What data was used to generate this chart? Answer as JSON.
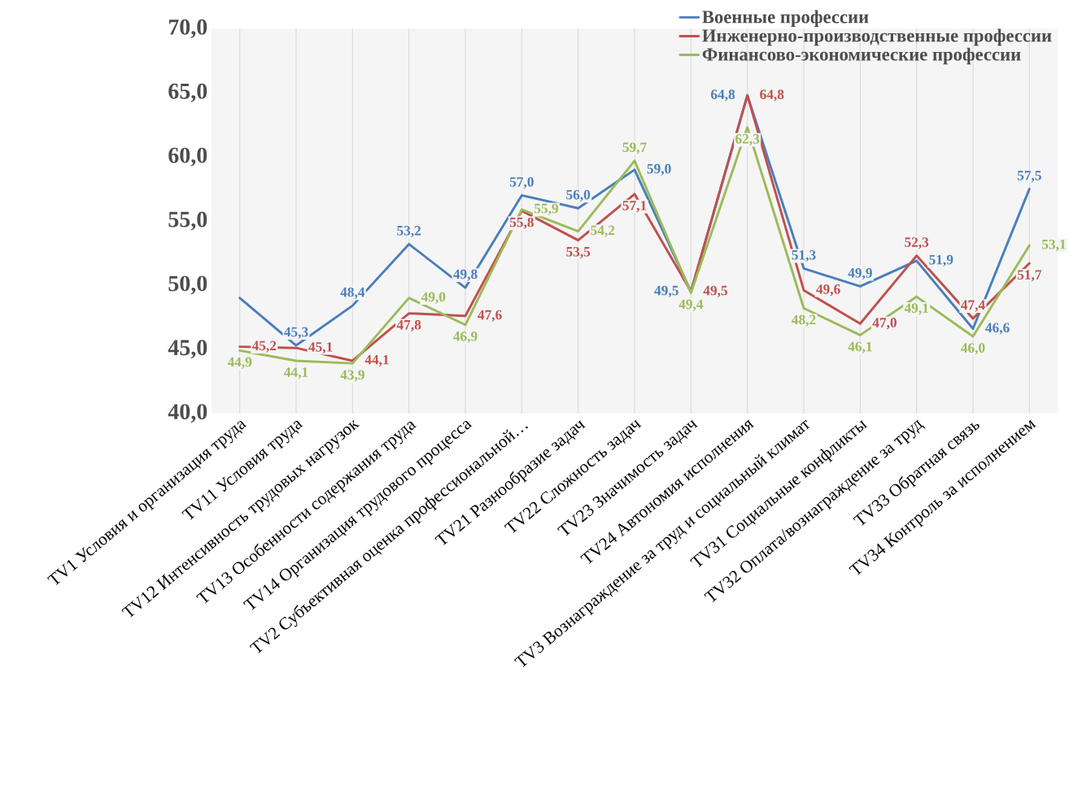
{
  "chart_data": {
    "type": "line",
    "categories": [
      "TV1 Условия и организация труда",
      "TV11 Условия труда",
      "TV12 Интенсивность трудовых нагрузок",
      "TV13 Особенности содержания труда",
      "TV14 Организация трудового процесса",
      "TV2 Субъективная оценка профессиональной…",
      "TV21 Разнообразие задач",
      "TV22 Сложность задач",
      "TV23 Значимость задач",
      "TV24 Автономия исполнения",
      "TV3 Вознаграждение за труд и социальный климат",
      "TV31 Социальные конфликты",
      "TV32 Оплата/вознаграждение за труд",
      "TV33 Обратная связь",
      "TV34 Контроль за исполнением"
    ],
    "series": [
      {
        "name": "Военные профессии",
        "color": "#4a7ebb",
        "values": [
          49.0,
          45.3,
          48.4,
          53.2,
          49.8,
          57.0,
          56.0,
          59.0,
          49.5,
          64.8,
          51.3,
          49.9,
          51.9,
          46.6,
          57.5
        ],
        "value_labels": [
          null,
          "45,3",
          "48,4",
          "53,2",
          "49,8",
          "57,0",
          "56,0",
          "59,0",
          "49,5",
          "64,8",
          "51,3",
          "49,9",
          "51,9",
          "46,6",
          "57,5"
        ]
      },
      {
        "name": "Инженерно-производственные профессии",
        "color": "#c0504d",
        "values": [
          45.2,
          45.1,
          44.1,
          47.8,
          47.6,
          55.8,
          53.5,
          57.1,
          49.5,
          64.8,
          49.6,
          47.0,
          52.3,
          47.4,
          51.7
        ],
        "value_labels": [
          "45,2",
          "45,1",
          "44,1",
          "47,8",
          "47,6",
          "55,8",
          "53,5",
          "57,1",
          "49,5",
          "64,8",
          "49,6",
          "47,0",
          "52,3",
          "47,4",
          "51,7"
        ]
      },
      {
        "name": "Финансово-экономические профессии",
        "color": "#9bbb59",
        "values": [
          44.9,
          44.1,
          43.9,
          49.0,
          46.9,
          55.9,
          54.2,
          59.7,
          49.4,
          62.3,
          48.2,
          46.1,
          49.1,
          46.0,
          53.1
        ],
        "value_labels": [
          "44,9",
          "44,1",
          "43,9",
          "49,0",
          "46,9",
          "55,9",
          "54,2",
          "59,7",
          "49,4",
          "62,3",
          "48,2",
          "46,1",
          "49,1",
          "46,0",
          "53,1"
        ]
      }
    ],
    "ylim": [
      40,
      70
    ],
    "yticks": [
      {
        "value": 40,
        "label": "40,0"
      },
      {
        "value": 45,
        "label": "45,0"
      },
      {
        "value": 50,
        "label": "50,0"
      },
      {
        "value": 55,
        "label": "55,0"
      },
      {
        "value": 60,
        "label": "60,0"
      },
      {
        "value": 65,
        "label": "65,0"
      },
      {
        "value": 70,
        "label": "70,0"
      }
    ],
    "grid": "x",
    "legend": "top right",
    "marker": "none",
    "line_style": "solid"
  }
}
